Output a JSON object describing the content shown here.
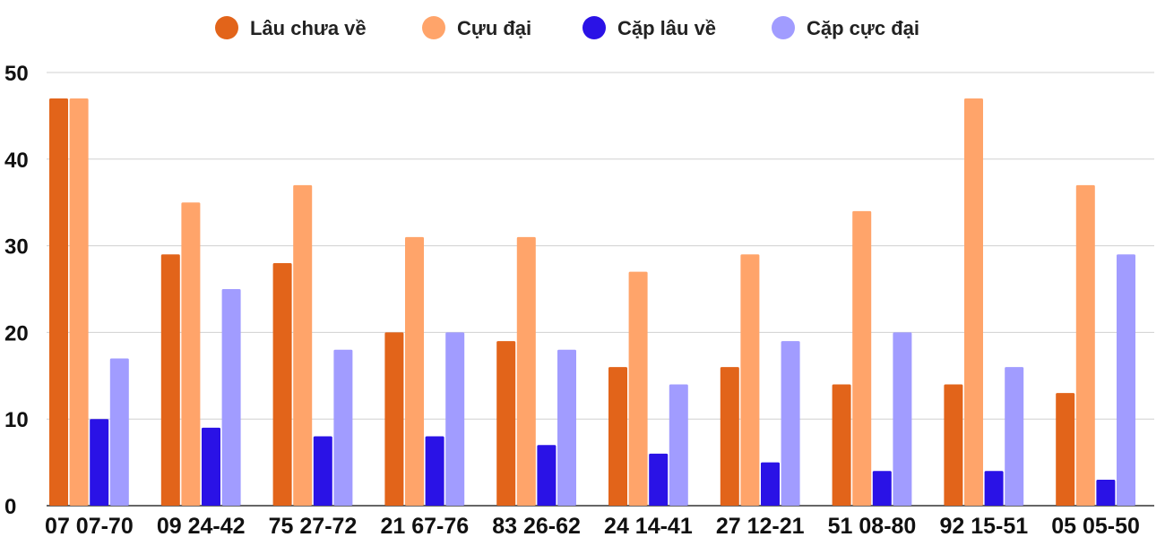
{
  "chart_data": {
    "type": "bar",
    "categories": [
      "07 07-70",
      "09 24-42",
      "75 27-72",
      "21 67-76",
      "83 26-62",
      "24 14-41",
      "27 12-21",
      "51 08-80",
      "92 15-51",
      "05 05-50"
    ],
    "series": [
      {
        "name": "Lâu chưa về",
        "color": "#e2641a",
        "values": [
          47,
          29,
          28,
          20,
          19,
          16,
          16,
          14,
          14,
          13
        ]
      },
      {
        "name": "Cựu đại",
        "color": "#ffa46a",
        "values": [
          47,
          35,
          37,
          31,
          31,
          27,
          29,
          34,
          47,
          37
        ]
      },
      {
        "name": "Cặp lâu về",
        "color": "#2a12e6",
        "values": [
          10,
          9,
          8,
          8,
          7,
          6,
          5,
          4,
          4,
          3
        ]
      },
      {
        "name": "Cặp cực đại",
        "color": "#a19cff",
        "values": [
          17,
          25,
          18,
          20,
          18,
          14,
          19,
          20,
          16,
          29
        ]
      }
    ],
    "yticks": [
      0,
      10,
      20,
      30,
      40,
      50
    ],
    "ylim": [
      0,
      50
    ],
    "grid": true,
    "legend_position": "top-center"
  }
}
